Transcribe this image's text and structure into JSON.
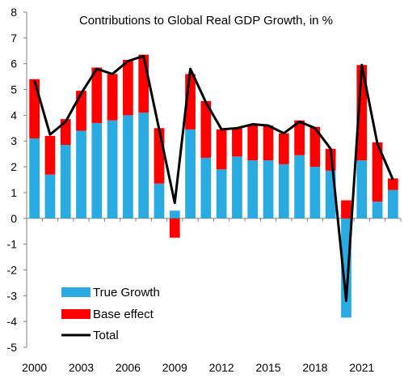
{
  "chart_data": {
    "type": "bar",
    "title": "Contributions to Global Real GDP Growth, in %",
    "ylim": [
      -5,
      8
    ],
    "y_ticks": [
      8,
      7,
      6,
      5,
      4,
      3,
      2,
      1,
      0,
      -1,
      -2,
      -3,
      -4,
      -5
    ],
    "x_tick_years": [
      2000,
      2003,
      2006,
      2009,
      2012,
      2015,
      2018,
      2021
    ],
    "x_tick_labels": [
      "2000",
      "2003",
      "2006",
      "2009",
      "2012",
      "2015",
      "2018",
      "2021"
    ],
    "years": [
      2000,
      2001,
      2002,
      2003,
      2004,
      2005,
      2006,
      2007,
      2008,
      2009,
      2010,
      2011,
      2012,
      2013,
      2014,
      2015,
      2016,
      2017,
      2018,
      2019,
      2020,
      2021,
      2022,
      2023
    ],
    "stacked": true,
    "legend_position": "bottom-left",
    "series": [
      {
        "name": "True Growth",
        "kind": "bar",
        "color": "#29abe2",
        "values": [
          3.1,
          1.7,
          2.85,
          3.4,
          3.7,
          3.8,
          4.0,
          4.1,
          1.35,
          0.3,
          3.45,
          2.35,
          1.9,
          2.4,
          2.25,
          2.25,
          2.1,
          2.45,
          2.0,
          1.85,
          -3.85,
          2.25,
          0.65,
          1.1
        ]
      },
      {
        "name": "Base effect",
        "kind": "bar",
        "color": "#ff0000",
        "values": [
          2.3,
          1.5,
          1.0,
          1.55,
          2.15,
          1.8,
          2.15,
          2.25,
          2.15,
          -0.75,
          2.15,
          2.2,
          1.55,
          1.1,
          1.4,
          1.35,
          1.2,
          1.35,
          1.55,
          0.85,
          0.7,
          3.7,
          2.3,
          0.45
        ]
      },
      {
        "name": "Total",
        "kind": "line",
        "color": "#000000",
        "values": [
          5.35,
          3.25,
          3.75,
          4.85,
          5.8,
          5.6,
          6.1,
          6.3,
          3.45,
          0.6,
          5.8,
          4.5,
          3.45,
          3.5,
          3.65,
          3.6,
          3.3,
          3.75,
          3.5,
          2.7,
          -3.2,
          5.95,
          2.9,
          1.5
        ]
      }
    ]
  }
}
